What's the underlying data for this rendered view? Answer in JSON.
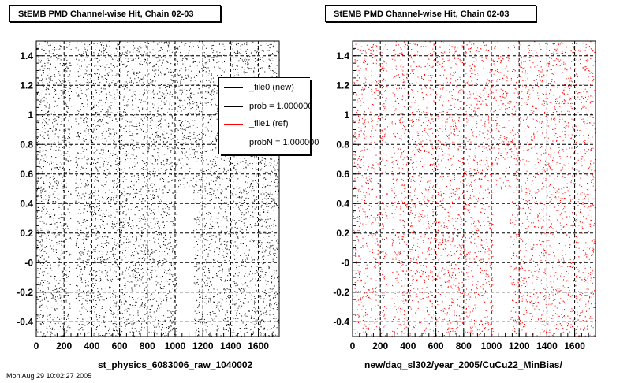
{
  "panels": [
    {
      "title": "StEMB PMD Channel-wise Hit, Chain 02-03",
      "xlabel": "st_physics_6083006_raw_1040002"
    },
    {
      "title": "StEMB PMD Channel-wise Hit, Chain 02-03",
      "xlabel": "new/daq_sl302/year_2005/CuCu22_MinBias/"
    }
  ],
  "legend": {
    "entries": [
      {
        "label": "_file0 (new)",
        "color": "#000000"
      },
      {
        "label": "prob = 1.000000",
        "color": "#000000"
      },
      {
        "label": "_file1 (ref)",
        "color": "#ff0000"
      },
      {
        "label": "probN = 1.000000",
        "color": "#ff0000"
      }
    ]
  },
  "footer": "Mon Aug 29 10:02:27 2005",
  "colors": {
    "new": "#000000",
    "ref": "#ff0000"
  },
  "chart_data": [
    {
      "type": "scatter",
      "title": "StEMB PMD Channel-wise Hit, Chain 02-03",
      "xlabel": "st_physics_6083006_raw_1040002",
      "ylabel": "",
      "xlim": [
        0,
        1750
      ],
      "ylim": [
        -0.5,
        1.5
      ],
      "xticks": [
        0,
        200,
        400,
        600,
        800,
        1000,
        1200,
        1400,
        1600
      ],
      "yticks": [
        -0.4,
        -0.2,
        0,
        0.2,
        0.4,
        0.6,
        0.8,
        1,
        1.2,
        1.4
      ],
      "ytick_labels": [
        "-0.4",
        "-0.2",
        "-0",
        "0.2",
        "0.4",
        "0.6",
        "0.8",
        "1",
        "1.2",
        "1.4"
      ],
      "grid": true,
      "series": [
        {
          "name": "_file0 (new)",
          "color": "#000000",
          "distribution": "uniform",
          "count": 6500,
          "gaps": [
            {
              "x": [
                250,
                280
              ],
              "y": [
                -0.5,
                1.5
              ]
            },
            {
              "x": [
                1010,
                1130
              ],
              "y": [
                -0.5,
                0.5
              ]
            }
          ]
        }
      ]
    },
    {
      "type": "scatter",
      "title": "StEMB PMD Channel-wise Hit, Chain 02-03",
      "xlabel": "new/daq_sl302/year_2005/CuCu22_MinBias/",
      "ylabel": "",
      "xlim": [
        0,
        1750
      ],
      "ylim": [
        -0.5,
        1.5
      ],
      "xticks": [
        0,
        200,
        400,
        600,
        800,
        1000,
        1200,
        1400,
        1600
      ],
      "yticks": [
        -0.4,
        -0.2,
        0,
        0.2,
        0.4,
        0.6,
        0.8,
        1,
        1.2,
        1.4
      ],
      "ytick_labels": [
        "-0.4",
        "-0.2",
        "-0",
        "0.2",
        "0.4",
        "0.6",
        "0.8",
        "1",
        "1.2",
        "1.4"
      ],
      "grid": true,
      "series": [
        {
          "name": "_file1 (ref)",
          "color": "#ff0000",
          "distribution": "uniform",
          "count": 6500,
          "gaps": [
            {
              "x": [
                250,
                280
              ],
              "y": [
                -0.5,
                1.5
              ]
            },
            {
              "x": [
                1010,
                1130
              ],
              "y": [
                -0.5,
                0.5
              ]
            }
          ]
        }
      ]
    }
  ]
}
